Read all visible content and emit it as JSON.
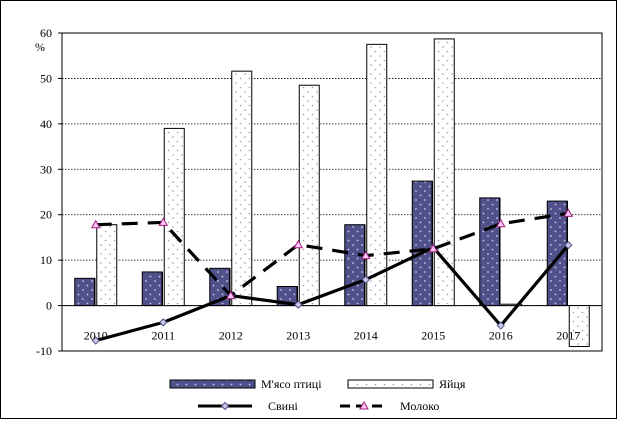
{
  "chart_data": {
    "type": "bar",
    "title": "",
    "xlabel": "",
    "ylabel": "%",
    "ylim": [
      -10,
      60
    ],
    "yticks": [
      -10,
      0,
      10,
      20,
      30,
      40,
      50,
      60
    ],
    "grid": true,
    "legend_position": "bottom",
    "categories": [
      "2010",
      "2011",
      "2012",
      "2013",
      "2014",
      "2015",
      "2016",
      "2017"
    ],
    "series": [
      {
        "name": "М'ясо птиці",
        "kind": "bar",
        "color": "#50508a",
        "pattern": "dots",
        "values": [
          6.0,
          7.4,
          8.2,
          4.2,
          17.8,
          27.4,
          23.7,
          23.0
        ]
      },
      {
        "name": "Яйця",
        "kind": "bar",
        "color": "#ffffff",
        "pattern": "dots",
        "values": [
          17.8,
          39.0,
          51.6,
          48.5,
          57.5,
          58.7,
          0.3,
          -9.0
        ]
      },
      {
        "name": "Свині",
        "kind": "line",
        "color": "#000000",
        "style": "solid",
        "marker": "diamond",
        "values": [
          -7.7,
          -3.7,
          2.2,
          0.2,
          5.7,
          12.8,
          -4.4,
          13.3
        ]
      },
      {
        "name": "Молоко",
        "kind": "line",
        "color": "#000000",
        "style": "dashed",
        "marker": "triangle",
        "values": [
          17.8,
          18.3,
          2.2,
          13.4,
          11.0,
          12.5,
          18.0,
          20.3
        ]
      }
    ]
  }
}
